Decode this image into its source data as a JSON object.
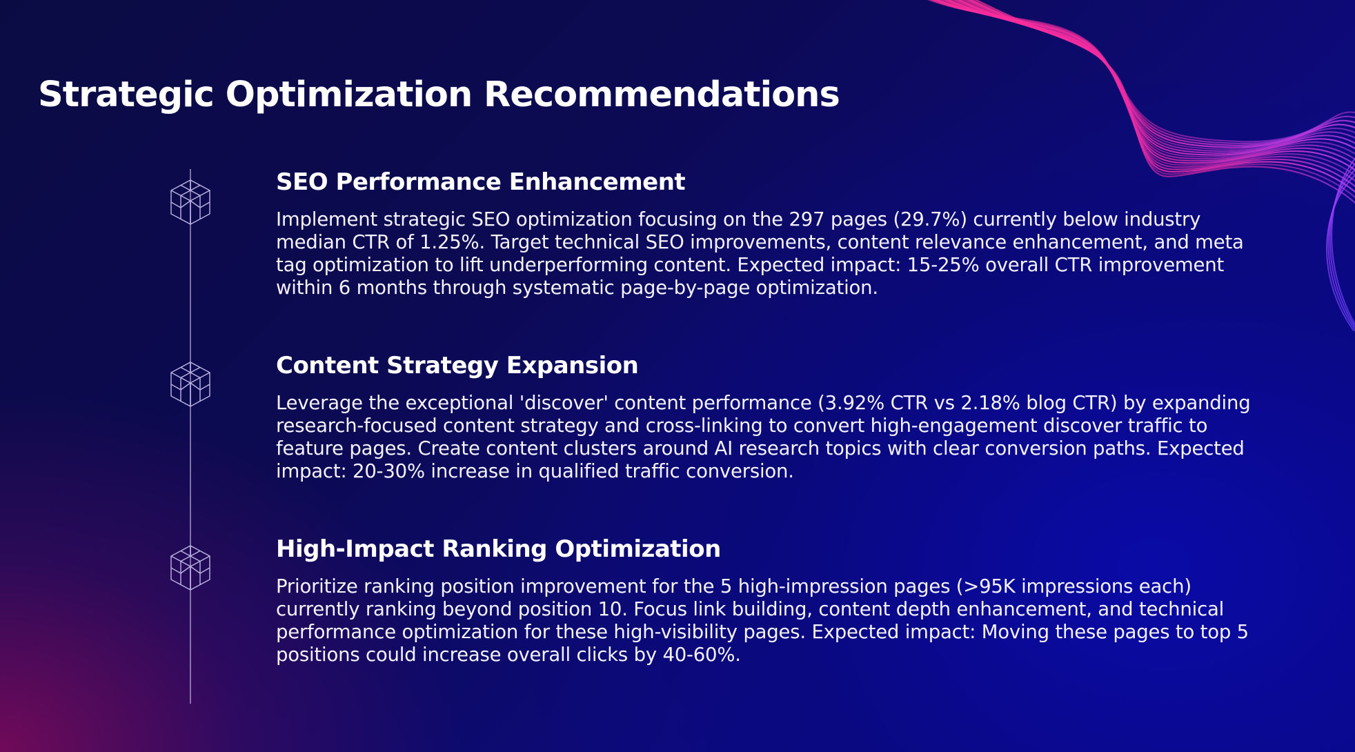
{
  "slide": {
    "title": "Strategic Optimization Recommendations",
    "items": [
      {
        "heading": "SEO Performance Enhancement",
        "body": "Implement strategic SEO optimization focusing on the 297 pages (29.7%) currently below industry median CTR of 1.25%. Target technical SEO improvements, content relevance enhancement, and meta tag optimization to lift underperforming content. Expected impact: 15-25% overall CTR improvement within 6 months through systematic page-by-page optimization.",
        "icon": "geometric-cube-icon"
      },
      {
        "heading": "Content Strategy Expansion",
        "body": "Leverage the exceptional 'discover' content performance (3.92% CTR vs 2.18% blog CTR) by expanding research-focused content strategy and cross-linking to convert high-engagement discover traffic to feature pages. Create content clusters around AI research topics with clear conversion paths. Expected impact: 20-30% increase in qualified traffic conversion.",
        "icon": "geometric-cube-icon"
      },
      {
        "heading": "High-Impact Ranking Optimization",
        "body": "Prioritize ranking position improvement for the 5 high-impression pages (>95K impressions each) currently ranking beyond position 10. Focus link building, content depth enhancement, and technical performance optimization for these high-visibility pages. Expected impact: Moving these pages to top 5 positions could increase overall clicks by 40-60%.",
        "icon": "geometric-cube-icon"
      }
    ]
  },
  "colors": {
    "background_dark": "#0b0b44",
    "background_blue": "#0a0a9a",
    "background_magenta": "#820a5a",
    "wave_pink": "#ff2d9a",
    "wave_violet": "#a040ff",
    "text": "#ffffff",
    "timeline": "#d2c8eb"
  }
}
